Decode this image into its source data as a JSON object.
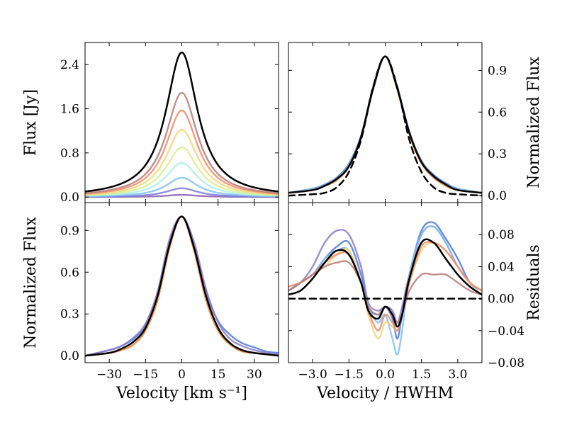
{
  "chart_data": [
    {
      "panel": "top-left",
      "type": "line",
      "xlabel": "",
      "ylabel": "Flux [Jy]",
      "xlim": [
        -40,
        40
      ],
      "ylim": [
        -0.1,
        2.8
      ],
      "xticks": [
        -30,
        -15,
        0,
        15,
        30
      ],
      "xtick_labels": [
        "",
        "",
        "",
        "",
        ""
      ],
      "yticks": [
        0.0,
        0.8,
        1.6,
        2.4
      ],
      "ytick_labels": [
        "0.0",
        "0.8",
        "1.6",
        "2.4"
      ],
      "yaxis_side": "left",
      "profile": "lorentzian",
      "hwhm": 8,
      "series": [
        {
          "peak": 0.04,
          "color": "#8a5ab0"
        },
        {
          "peak": 0.16,
          "color": "#7b7bdc"
        },
        {
          "peak": 0.35,
          "color": "#7ec2f0"
        },
        {
          "peak": 0.62,
          "color": "#aef0e0"
        },
        {
          "peak": 0.9,
          "color": "#d6f08a"
        },
        {
          "peak": 1.22,
          "color": "#f5d37a"
        },
        {
          "peak": 1.57,
          "color": "#f08a6a"
        },
        {
          "peak": 1.89,
          "color": "#b97a78"
        },
        {
          "peak": 2.62,
          "color": "#000000",
          "width": 2.5
        }
      ]
    },
    {
      "panel": "top-right",
      "type": "line",
      "xlabel": "",
      "ylabel": "Normalized Flux",
      "xlim": [
        -4.0,
        4.0
      ],
      "ylim": [
        -0.05,
        1.1
      ],
      "xticks": [
        -3.0,
        -1.5,
        0.0,
        1.5,
        3.0
      ],
      "xtick_labels": [
        "",
        "",
        "",
        "",
        ""
      ],
      "yticks": [
        0.0,
        0.3,
        0.6,
        0.9
      ],
      "ytick_labels": [
        "0.0",
        "0.3",
        "0.6",
        "0.9"
      ],
      "yaxis_side": "right",
      "x": [
        -4.0,
        -3.0,
        -2.5,
        -2.0,
        -1.5,
        -1.0,
        -0.5,
        0.0,
        0.5,
        1.0,
        1.5,
        2.0,
        2.5,
        3.0,
        4.0
      ],
      "series": [
        {
          "color": "#4a7ad8",
          "y": [
            0.02,
            0.05,
            0.08,
            0.13,
            0.23,
            0.43,
            0.78,
            1.0,
            0.78,
            0.46,
            0.25,
            0.15,
            0.09,
            0.05,
            0.02
          ]
        },
        {
          "color": "#7ec2f0",
          "y": [
            0.02,
            0.05,
            0.07,
            0.12,
            0.22,
            0.42,
            0.77,
            1.0,
            0.77,
            0.45,
            0.24,
            0.14,
            0.08,
            0.05,
            0.02
          ]
        },
        {
          "color": "#f5a030",
          "y": [
            0.02,
            0.04,
            0.07,
            0.11,
            0.21,
            0.42,
            0.77,
            1.0,
            0.76,
            0.44,
            0.23,
            0.13,
            0.07,
            0.04,
            0.02
          ]
        },
        {
          "color": "#b97a78",
          "y": [
            0.02,
            0.04,
            0.07,
            0.12,
            0.21,
            0.41,
            0.76,
            1.0,
            0.77,
            0.45,
            0.24,
            0.13,
            0.08,
            0.04,
            0.02
          ]
        },
        {
          "color": "#000000",
          "width": 2.5,
          "y": [
            0.02,
            0.04,
            0.07,
            0.12,
            0.21,
            0.42,
            0.77,
            1.0,
            0.77,
            0.45,
            0.24,
            0.14,
            0.08,
            0.04,
            0.02
          ]
        },
        {
          "color": "#000000",
          "width": 2.5,
          "dashed": true,
          "y": [
            0.0,
            0.01,
            0.02,
            0.06,
            0.17,
            0.4,
            0.78,
            1.0,
            0.78,
            0.4,
            0.17,
            0.06,
            0.02,
            0.01,
            0.0
          ]
        }
      ]
    },
    {
      "panel": "bottom-left",
      "type": "line",
      "xlabel": "Velocity [km s⁻¹]",
      "ylabel": "Normalized Flux",
      "xlim": [
        -40,
        40
      ],
      "ylim": [
        -0.05,
        1.1
      ],
      "xticks": [
        -30,
        -15,
        0,
        15,
        30
      ],
      "xtick_labels": [
        "−30",
        "−15",
        "0",
        "15",
        "30"
      ],
      "yticks": [
        0.0,
        0.3,
        0.6,
        0.9
      ],
      "ytick_labels": [
        "0.0",
        "0.3",
        "0.6",
        "0.9"
      ],
      "yaxis_side": "left",
      "x": [
        -40,
        -30,
        -25,
        -20,
        -15,
        -10,
        -5,
        0,
        5,
        10,
        15,
        20,
        25,
        30,
        35,
        40
      ],
      "series": [
        {
          "color": "#4a7ad8",
          "y": [
            0.0,
            0.04,
            0.07,
            0.12,
            0.22,
            0.45,
            0.82,
            1.0,
            0.8,
            0.46,
            0.25,
            0.15,
            0.09,
            0.06,
            0.03,
            0.02
          ]
        },
        {
          "color": "#8a7ac8",
          "y": [
            0.0,
            0.04,
            0.07,
            0.13,
            0.23,
            0.46,
            0.84,
            1.0,
            0.82,
            0.48,
            0.24,
            0.12,
            0.07,
            0.04,
            0.02,
            0.01
          ]
        },
        {
          "color": "#f08030",
          "y": [
            0.0,
            0.02,
            0.04,
            0.08,
            0.18,
            0.4,
            0.78,
            1.0,
            0.76,
            0.4,
            0.18,
            0.08,
            0.03,
            0.02,
            0.01,
            0.0
          ]
        },
        {
          "color": "#000000",
          "width": 2.5,
          "y": [
            0.0,
            0.02,
            0.05,
            0.1,
            0.2,
            0.43,
            0.8,
            1.0,
            0.78,
            0.43,
            0.2,
            0.09,
            0.04,
            0.02,
            0.01,
            0.0
          ]
        }
      ]
    },
    {
      "panel": "bottom-right",
      "type": "line",
      "xlabel": "Velocity / HWHM",
      "ylabel": "Residuals",
      "xlim": [
        -4.0,
        4.0
      ],
      "ylim": [
        -0.08,
        0.12
      ],
      "xticks": [
        -3.0,
        -1.5,
        0.0,
        1.5,
        3.0
      ],
      "xtick_labels": [
        "−3.0",
        "−1.5",
        "0.0",
        "1.5",
        "3.0"
      ],
      "yticks": [
        -0.08,
        -0.04,
        0.0,
        0.04,
        0.08
      ],
      "ytick_labels": [
        "−0.08",
        "−0.04",
        "0.00",
        "0.04",
        "0.08"
      ],
      "yaxis_side": "right",
      "x": [
        -4.0,
        -3.5,
        -3.0,
        -2.5,
        -2.0,
        -1.5,
        -1.0,
        -0.7,
        -0.3,
        0.0,
        0.3,
        0.5,
        0.7,
        1.0,
        1.5,
        2.0,
        2.5,
        3.0,
        3.5,
        4.0
      ],
      "series": [
        {
          "color": "#8a7ac8",
          "y": [
            0.01,
            0.02,
            0.04,
            0.07,
            0.085,
            0.08,
            0.04,
            -0.005,
            -0.015,
            -0.01,
            -0.015,
            -0.03,
            -0.01,
            0.03,
            0.08,
            0.09,
            0.07,
            0.04,
            0.02,
            0.01
          ]
        },
        {
          "color": "#4a7ad8",
          "y": [
            0.01,
            0.02,
            0.03,
            0.05,
            0.065,
            0.07,
            0.03,
            -0.01,
            -0.02,
            -0.01,
            -0.025,
            -0.05,
            -0.02,
            0.03,
            0.085,
            0.095,
            0.075,
            0.05,
            0.02,
            0.01
          ]
        },
        {
          "color": "#7ec2f0",
          "y": [
            0.01,
            0.02,
            0.03,
            0.05,
            0.06,
            0.06,
            0.02,
            -0.01,
            -0.03,
            -0.02,
            -0.05,
            -0.07,
            -0.04,
            0.03,
            0.08,
            0.09,
            0.07,
            0.04,
            0.02,
            0.01
          ]
        },
        {
          "color": "#f5d37a",
          "y": [
            0.015,
            0.02,
            0.03,
            0.04,
            0.055,
            0.06,
            0.02,
            -0.02,
            -0.05,
            -0.03,
            -0.035,
            -0.04,
            -0.02,
            0.02,
            0.06,
            0.07,
            0.06,
            0.04,
            0.02,
            0.01
          ]
        },
        {
          "color": "#f08a6a",
          "y": [
            0.015,
            0.02,
            0.03,
            0.045,
            0.055,
            0.055,
            0.02,
            -0.015,
            -0.04,
            -0.02,
            -0.03,
            -0.04,
            -0.02,
            0.02,
            0.065,
            0.07,
            0.06,
            0.04,
            0.02,
            0.01
          ]
        },
        {
          "color": "#b97a78",
          "y": [
            0.01,
            0.02,
            0.03,
            0.04,
            0.045,
            0.045,
            0.02,
            -0.01,
            -0.02,
            -0.01,
            -0.02,
            -0.03,
            -0.02,
            0.01,
            0.03,
            0.03,
            0.03,
            0.02,
            0.01,
            0.005
          ]
        },
        {
          "color": "#000000",
          "width": 2.5,
          "y": [
            0.005,
            0.01,
            0.025,
            0.045,
            0.06,
            0.055,
            0.02,
            -0.015,
            -0.025,
            -0.01,
            -0.02,
            -0.035,
            -0.02,
            0.025,
            0.07,
            0.07,
            0.05,
            0.03,
            0.015,
            0.005
          ]
        },
        {
          "color": "#000000",
          "width": 2.5,
          "dashed": true,
          "y": [
            0.0,
            0.0,
            0.0,
            0.0,
            0.0,
            0.0,
            0.0,
            0.0,
            0.0,
            0.0,
            0.0,
            0.0,
            0.0,
            0.0,
            0.0,
            0.0,
            0.0,
            0.0,
            0.0,
            0.0
          ]
        }
      ]
    }
  ]
}
